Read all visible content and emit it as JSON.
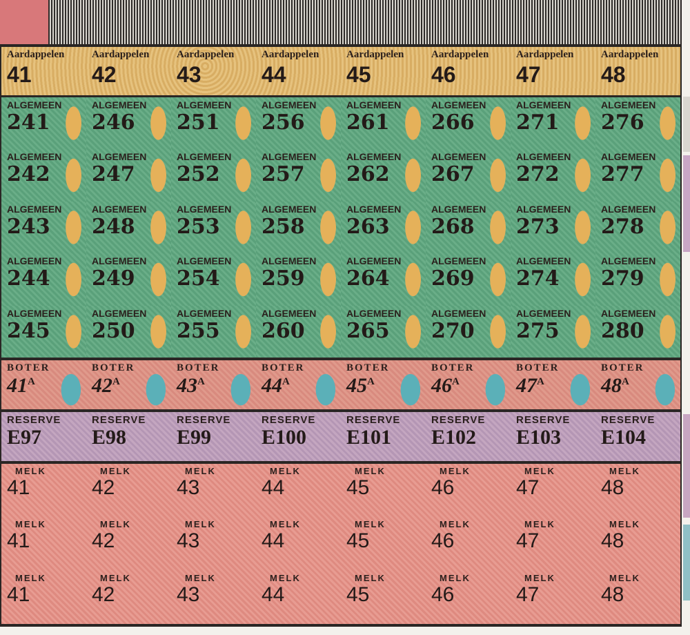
{
  "aardappelen": {
    "label": "Aardappelen",
    "numbers": [
      "41",
      "42",
      "43",
      "44",
      "45",
      "46",
      "47",
      "48"
    ]
  },
  "algemeen": {
    "label": "ALGEMEEN",
    "rows": [
      [
        "241",
        "246",
        "251",
        "256",
        "261",
        "266",
        "271",
        "276"
      ],
      [
        "242",
        "247",
        "252",
        "257",
        "262",
        "267",
        "272",
        "277"
      ],
      [
        "243",
        "248",
        "253",
        "258",
        "263",
        "268",
        "273",
        "278"
      ],
      [
        "244",
        "249",
        "254",
        "259",
        "264",
        "269",
        "274",
        "279"
      ],
      [
        "245",
        "250",
        "255",
        "260",
        "265",
        "270",
        "275",
        "280"
      ]
    ]
  },
  "boter": {
    "label": "BOTER",
    "suffix": "A",
    "numbers": [
      "41",
      "42",
      "43",
      "44",
      "45",
      "46",
      "47",
      "48"
    ]
  },
  "reserve": {
    "label": "RESERVE",
    "numbers": [
      "E97",
      "E98",
      "E99",
      "E100",
      "E101",
      "E102",
      "E103",
      "E104"
    ]
  },
  "melk": {
    "label": "MELK",
    "rows": [
      [
        "41",
        "42",
        "43",
        "44",
        "45",
        "46",
        "47",
        "48"
      ],
      [
        "41",
        "42",
        "43",
        "44",
        "45",
        "46",
        "47",
        "48"
      ],
      [
        "41",
        "42",
        "43",
        "44",
        "45",
        "46",
        "47",
        "48"
      ]
    ]
  },
  "colors": {
    "aardappelen": "#e0b86f",
    "algemeen": "#5fa37e",
    "boter": "#dc9284",
    "reserve": "#bc9ebc",
    "melk": "#e3938a"
  }
}
